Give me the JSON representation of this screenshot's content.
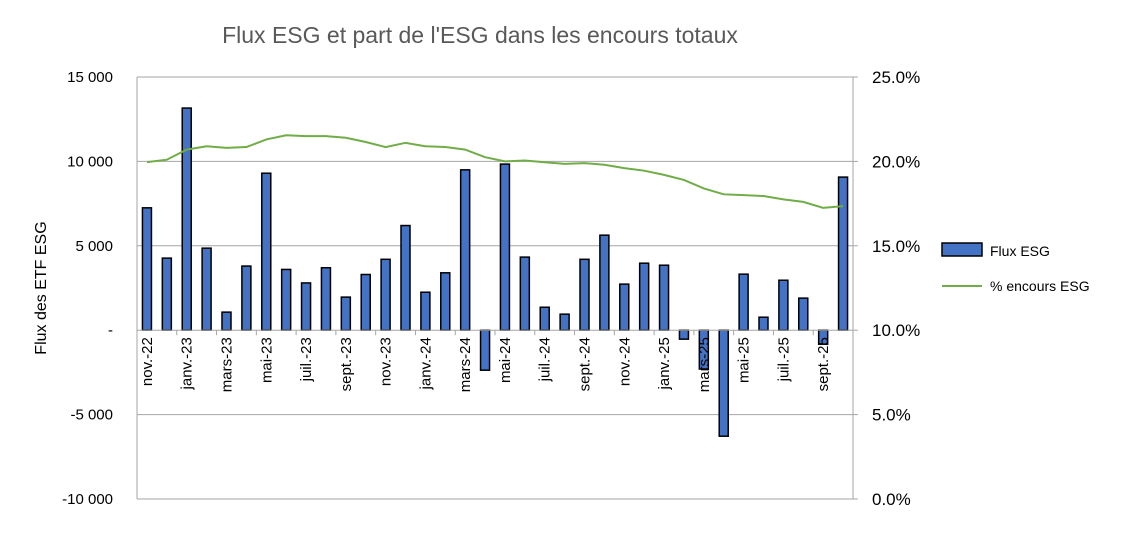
{
  "chart_data": {
    "type": "bar+line",
    "title": "Flux ESG et part de l'ESG dans les encours totaux",
    "ylabel": "Flux des ETF ESG",
    "ylim": [
      -10000,
      15000
    ],
    "y2lim": [
      0,
      25
    ],
    "yticks": [
      "-10 000",
      "-5 000",
      "-",
      "5 000",
      "10 000",
      "15 000"
    ],
    "yticks_values": [
      -10000,
      -5000,
      0,
      5000,
      10000,
      15000
    ],
    "y2ticks": [
      "0.0%",
      "5.0%",
      "10.0%",
      "15.0%",
      "20.0%",
      "25.0%"
    ],
    "y2ticks_values": [
      0,
      5,
      10,
      15,
      20,
      25
    ],
    "x_labels": [
      "nov.-22",
      "janv.-23",
      "mars-23",
      "mai-23",
      "juil.-23",
      "sept.-23",
      "nov.-23",
      "janv.-24",
      "mars-24",
      "mai-24",
      "juil.-24",
      "sept.-24",
      "nov.-24",
      "janv.-25",
      "mars-25",
      "mai-25",
      "juil.-25",
      "sept.-25"
    ],
    "n_categories": 36,
    "grid": true,
    "legend_position": "right",
    "series": [
      {
        "name": "Flux ESG",
        "type": "bar",
        "axis": "left",
        "color": "#4472C4",
        "values": [
          7250,
          4270,
          13160,
          4860,
          1070,
          3800,
          9300,
          3600,
          2800,
          3700,
          1960,
          3300,
          4200,
          6200,
          2250,
          3400,
          9500,
          -2370,
          9840,
          4330,
          1360,
          950,
          4200,
          5630,
          2730,
          3970,
          3850,
          -530,
          -2300,
          -6280,
          3320,
          770,
          2960,
          1900,
          -830,
          9070
        ]
      },
      {
        "name": "% encours ESG",
        "type": "line",
        "axis": "right",
        "color": "#70AD47",
        "values": [
          19.96,
          20.1,
          20.7,
          20.9,
          20.8,
          20.85,
          21.3,
          21.55,
          21.5,
          21.5,
          21.4,
          21.15,
          20.85,
          21.1,
          20.9,
          20.85,
          20.7,
          20.25,
          20.0,
          20.05,
          19.95,
          19.85,
          19.9,
          19.8,
          19.6,
          19.45,
          19.2,
          18.9,
          18.4,
          18.05,
          18.0,
          17.95,
          17.75,
          17.6,
          17.25,
          17.35
        ]
      }
    ]
  }
}
